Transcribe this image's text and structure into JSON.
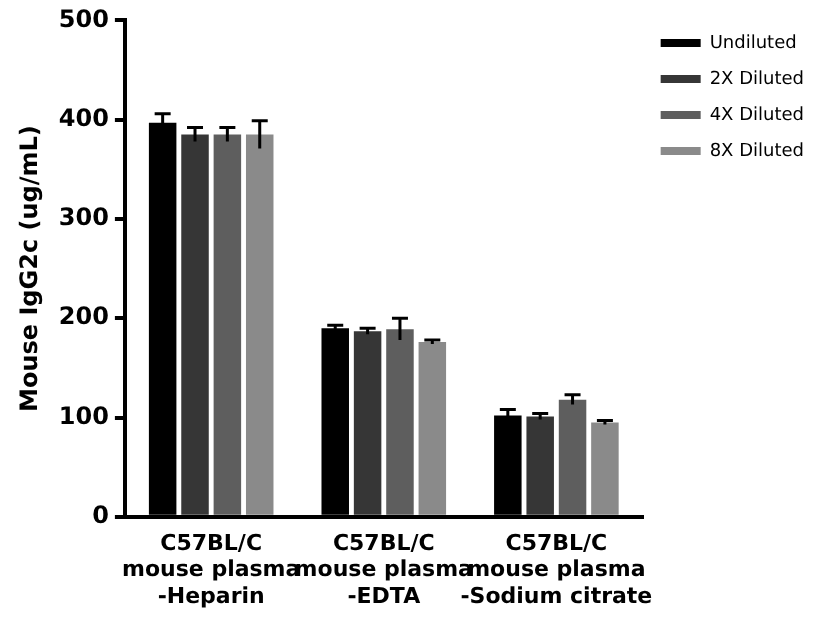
{
  "chart_data": {
    "type": "bar",
    "ylabel": "Mouse IgG2c (ug/mL)",
    "categories": [
      "C57BL/C\nmouse plasma\n-Heparin",
      "C57BL/C\nmouse plasma\n-EDTA",
      "C57BL/C\nmouse plasma\n-Sodium citrate"
    ],
    "series": [
      {
        "name": "Undiluted",
        "color": "#000000",
        "values": [
          397,
          190,
          102
        ],
        "errors": [
          9,
          3,
          6
        ]
      },
      {
        "name": "2X Diluted",
        "color": "#363636",
        "values": [
          385,
          187,
          101
        ],
        "errors": [
          7,
          3,
          3
        ]
      },
      {
        "name": "4X Diluted",
        "color": "#5e5e5e",
        "values": [
          385,
          189,
          118
        ],
        "errors": [
          7,
          11,
          5
        ]
      },
      {
        "name": "8X Diluted",
        "color": "#8a8a8a",
        "values": [
          385,
          176,
          95
        ],
        "errors": [
          14,
          2,
          2
        ]
      }
    ],
    "ylim": [
      0,
      500
    ],
    "yticks": [
      0,
      100,
      200,
      300,
      400,
      500
    ],
    "grid": false,
    "legend": "top right"
  }
}
